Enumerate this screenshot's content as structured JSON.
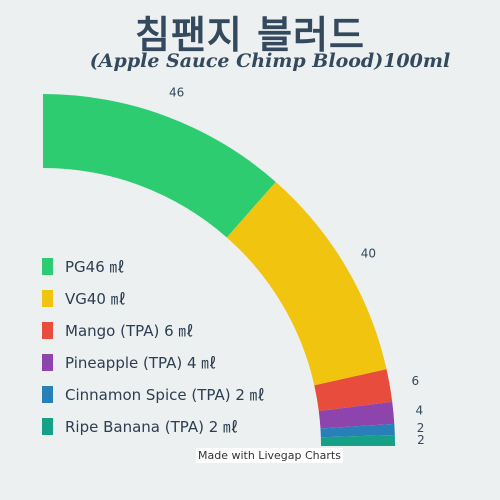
{
  "chart_data": {
    "type": "pie",
    "title": "침팬지 블러드",
    "subtitle": "(Apple Sauce Chimp Blood)100ml",
    "categories": [
      "PG46 ㎖",
      "VG40 ㎖",
      "Mango (TPA) 6 ㎖",
      "Pineapple (TPA) 4 ㎖",
      "Cinnamon Spice (TPA) 2 ㎖",
      "Ripe Banana (TPA) 2 ㎖"
    ],
    "values": [
      46,
      40,
      6,
      4,
      2,
      2
    ],
    "value_labels": [
      "46",
      "40",
      "6",
      "4",
      "2",
      "2"
    ],
    "colors": [
      "#2ecc71",
      "#f1c40f",
      "#e74c3c",
      "#8e44ad",
      "#2980b9",
      "#16a085"
    ],
    "legend_position": "left",
    "grid": false
  },
  "credit": "Made with Livegap Charts"
}
